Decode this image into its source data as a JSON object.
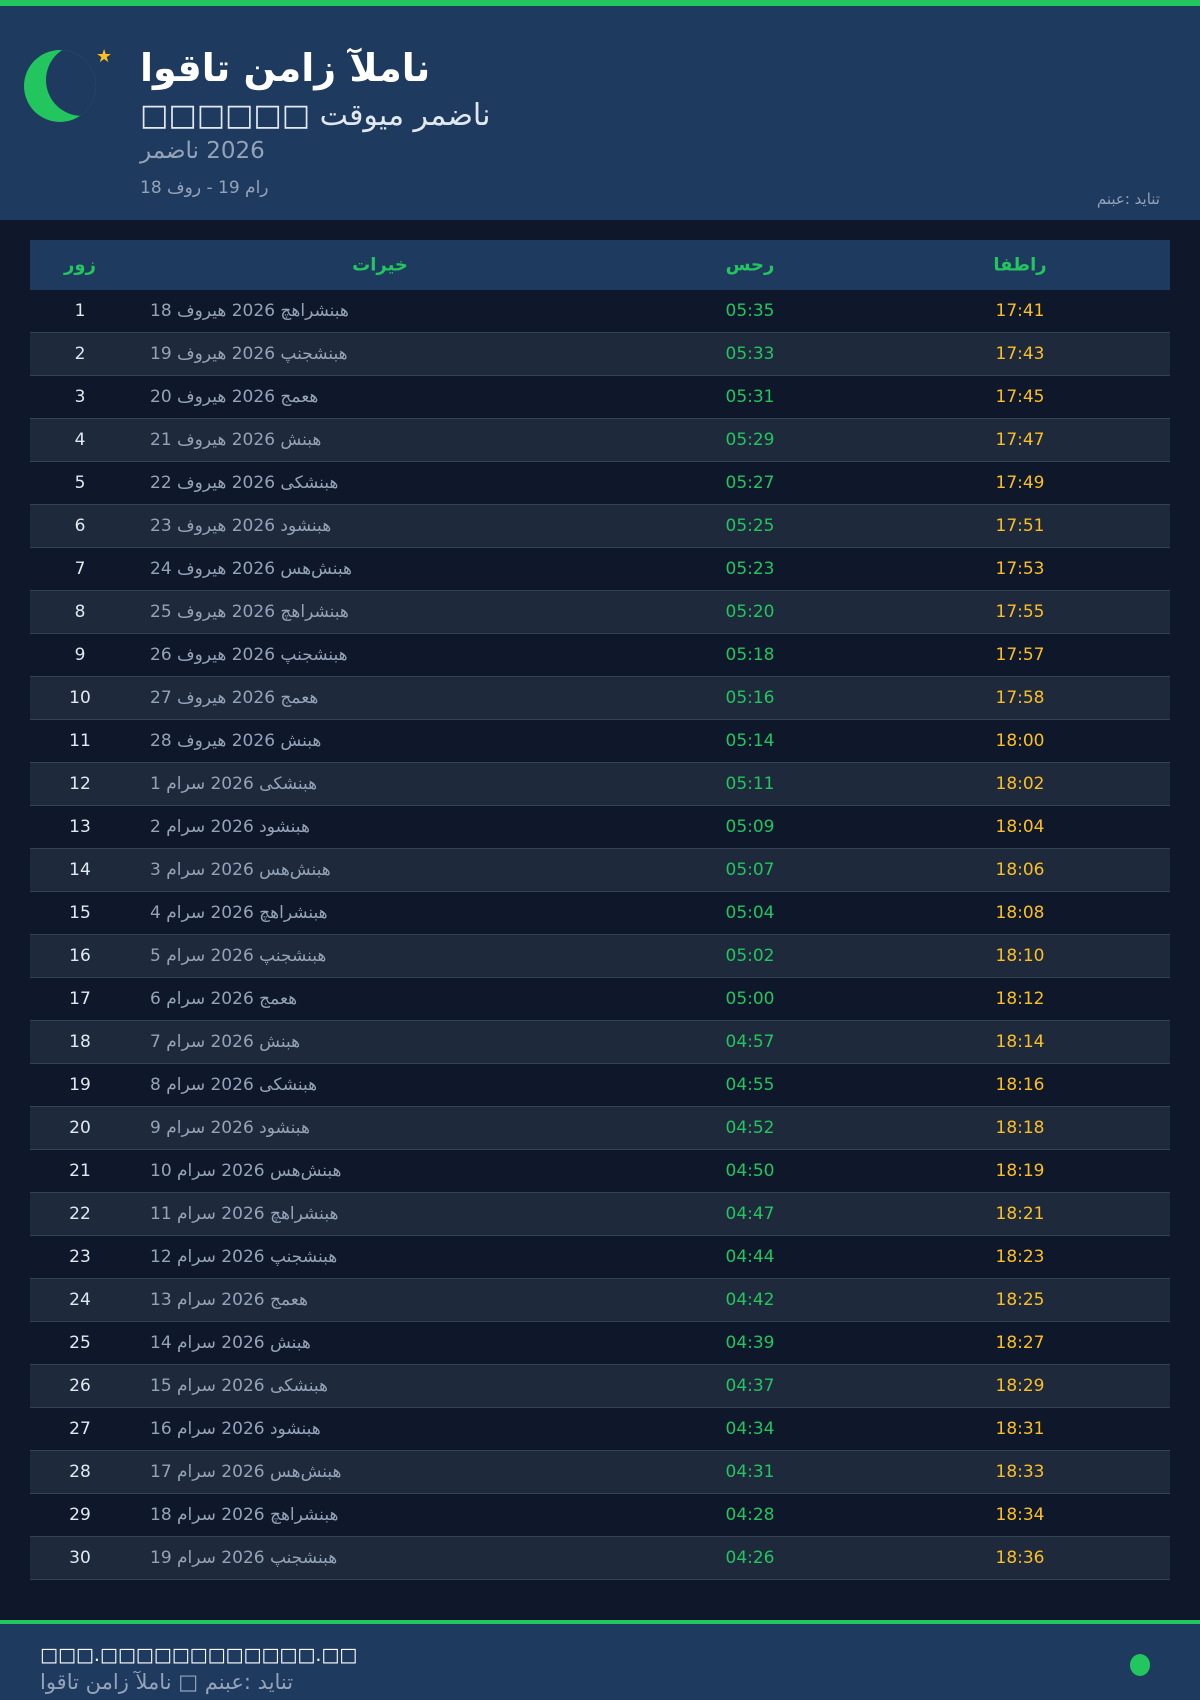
{
  "header": {
    "title": "اوقات نماز آلمان",
    "subtitle": "□□□□□□ تقویم رمضان",
    "year": "رمضان 2026",
    "range": "18 فور - 19 مار",
    "source": "منبع: دیانت"
  },
  "colors": {
    "accent": "#22c55e",
    "iftar": "#fbbf24",
    "header_bg": "#1e3a5f",
    "page_bg": "#0f172a"
  },
  "icons": {
    "logo": "crescent-moon-icon",
    "star": "star-icon"
  },
  "table": {
    "columns": [
      "روز",
      "تاریخ",
      "سحر",
      "افطار"
    ],
    "rows": [
      [
        "1",
        "18 فوریه 2026 چهارشنبه",
        "05:35",
        "17:41"
      ],
      [
        "2",
        "19 فوریه 2026 پنجشنبه",
        "05:33",
        "17:43"
      ],
      [
        "3",
        "20 فوریه 2026 جمعه",
        "05:31",
        "17:45"
      ],
      [
        "4",
        "21 فوریه 2026 شنبه",
        "05:29",
        "17:47"
      ],
      [
        "5",
        "22 فوریه 2026 یکشنبه",
        "05:27",
        "17:49"
      ],
      [
        "6",
        "23 فوریه 2026 دوشنبه",
        "05:25",
        "17:51"
      ],
      [
        "7",
        "24 فوریه 2026 سه‌شنبه",
        "05:23",
        "17:53"
      ],
      [
        "8",
        "25 فوریه 2026 چهارشنبه",
        "05:20",
        "17:55"
      ],
      [
        "9",
        "26 فوریه 2026 پنجشنبه",
        "05:18",
        "17:57"
      ],
      [
        "10",
        "27 فوریه 2026 جمعه",
        "05:16",
        "17:58"
      ],
      [
        "11",
        "28 فوریه 2026 شنبه",
        "05:14",
        "18:00"
      ],
      [
        "12",
        "1 مارس 2026 یکشنبه",
        "05:11",
        "18:02"
      ],
      [
        "13",
        "2 مارس 2026 دوشنبه",
        "05:09",
        "18:04"
      ],
      [
        "14",
        "3 مارس 2026 سه‌شنبه",
        "05:07",
        "18:06"
      ],
      [
        "15",
        "4 مارس 2026 چهارشنبه",
        "05:04",
        "18:08"
      ],
      [
        "16",
        "5 مارس 2026 پنجشنبه",
        "05:02",
        "18:10"
      ],
      [
        "17",
        "6 مارس 2026 جمعه",
        "05:00",
        "18:12"
      ],
      [
        "18",
        "7 مارس 2026 شنبه",
        "04:57",
        "18:14"
      ],
      [
        "19",
        "8 مارس 2026 یکشنبه",
        "04:55",
        "18:16"
      ],
      [
        "20",
        "9 مارس 2026 دوشنبه",
        "04:52",
        "18:18"
      ],
      [
        "21",
        "10 مارس 2026 سه‌شنبه",
        "04:50",
        "18:19"
      ],
      [
        "22",
        "11 مارس 2026 چهارشنبه",
        "04:47",
        "18:21"
      ],
      [
        "23",
        "12 مارس 2026 پنجشنبه",
        "04:44",
        "18:23"
      ],
      [
        "24",
        "13 مارس 2026 جمعه",
        "04:42",
        "18:25"
      ],
      [
        "25",
        "14 مارس 2026 شنبه",
        "04:39",
        "18:27"
      ],
      [
        "26",
        "15 مارس 2026 یکشنبه",
        "04:37",
        "18:29"
      ],
      [
        "27",
        "16 مارس 2026 دوشنبه",
        "04:34",
        "18:31"
      ],
      [
        "28",
        "17 مارس 2026 سه‌شنبه",
        "04:31",
        "18:33"
      ],
      [
        "29",
        "18 مارس 2026 چهارشنبه",
        "04:28",
        "18:34"
      ],
      [
        "30",
        "19 مارس 2026 پنجشنبه",
        "04:26",
        "18:36"
      ]
    ]
  },
  "footer": {
    "url": "□□□.□□□□□□□□□□□□.□□",
    "text": "اوقات نماز آلمان □ منبع: دیانت"
  }
}
